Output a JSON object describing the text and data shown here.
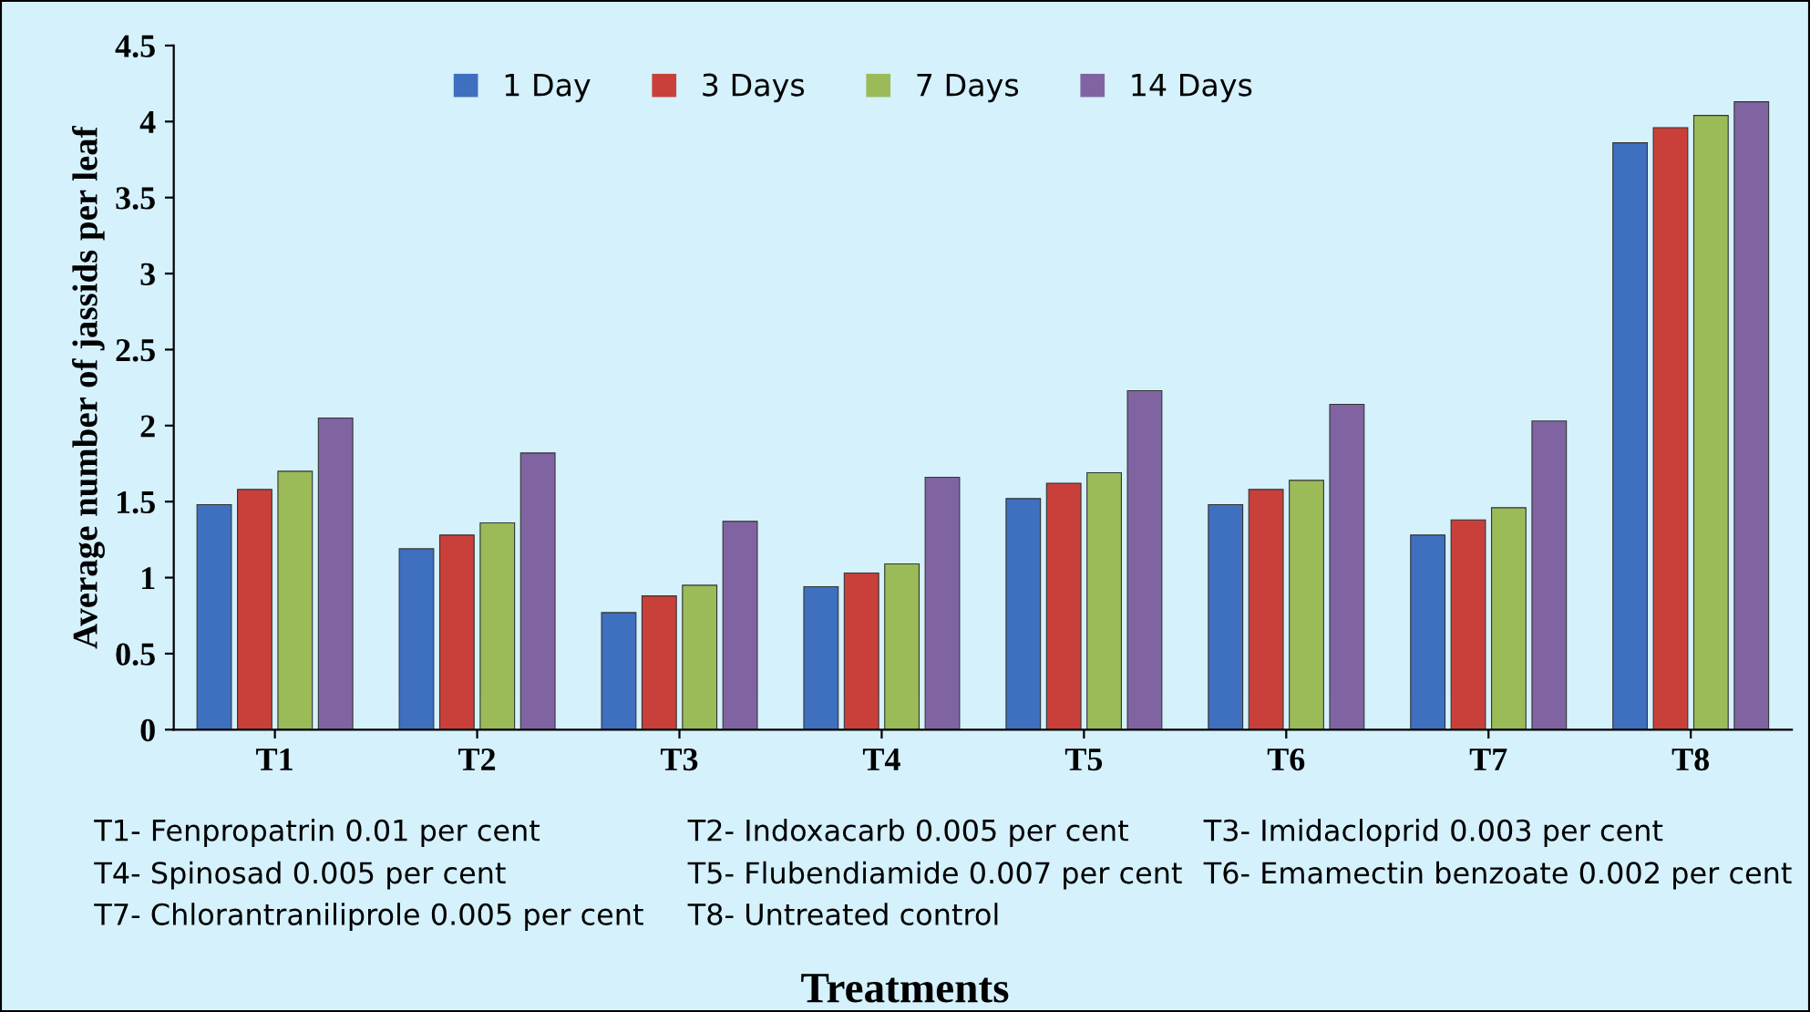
{
  "chart_data": {
    "type": "bar",
    "xlabel": "Treatments",
    "ylabel": "Average number of jassids per leaf",
    "categories": [
      "T1",
      "T2",
      "T3",
      "T4",
      "T5",
      "T6",
      "T7",
      "T8"
    ],
    "series": [
      {
        "name": "1 Day",
        "color": "#3f6fbf",
        "values": [
          1.48,
          1.19,
          0.77,
          0.94,
          1.52,
          1.48,
          1.28,
          3.86
        ]
      },
      {
        "name": "3 Days",
        "color": "#c9403a",
        "values": [
          1.58,
          1.28,
          0.88,
          1.03,
          1.62,
          1.58,
          1.38,
          3.96
        ]
      },
      {
        "name": "7 Days",
        "color": "#9bbb59",
        "values": [
          1.7,
          1.36,
          0.95,
          1.09,
          1.69,
          1.64,
          1.46,
          4.04
        ]
      },
      {
        "name": "14 Days",
        "color": "#8064a2",
        "values": [
          2.05,
          1.82,
          1.37,
          1.66,
          2.23,
          2.14,
          2.03,
          4.13
        ]
      }
    ],
    "ylim": [
      0,
      4.5
    ],
    "yticks": [
      0,
      0.5,
      1,
      1.5,
      2,
      2.5,
      3,
      3.5,
      4,
      4.5
    ],
    "grid": false,
    "legend": "top",
    "annotations": [
      "T1- Fenpropatrin 0.01 per cent",
      "T2- Indoxacarb 0.005 per cent",
      "T3- Imidacloprid 0.003 per cent",
      "T4- Spinosad 0.005 per cent",
      "T5- Flubendiamide 0.007 per cent",
      "T6- Emamectin benzoate 0.002 per cent",
      "T7- Chlorantraniliprole 0.005 per cent",
      "T8- Untreated control"
    ]
  }
}
